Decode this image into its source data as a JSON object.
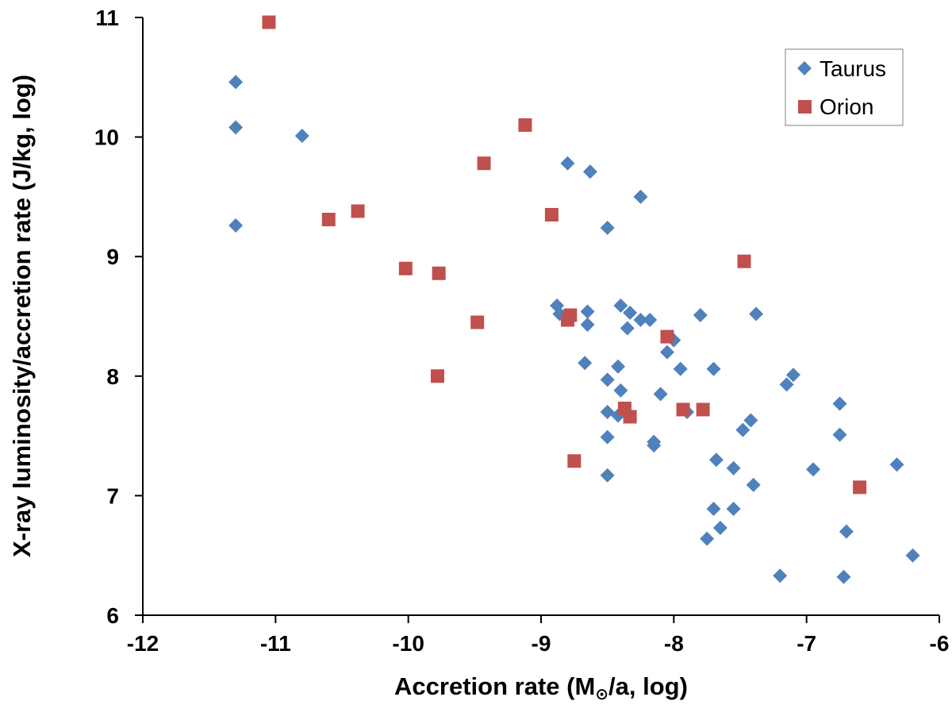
{
  "chart_data": {
    "type": "scatter",
    "title": "",
    "xlabel_main": "Accretion rate (M",
    "xlabel_unit": "/a, log)",
    "xlabel_symbol": "⊙",
    "ylabel": "X-ray luminosity/accretion rate (J/kg, log)",
    "xlim": [
      -12,
      -6
    ],
    "ylim": [
      6,
      11
    ],
    "xticks": [
      -12,
      -11,
      -10,
      -9,
      -8,
      -7,
      -6
    ],
    "yticks": [
      6,
      7,
      8,
      9,
      10,
      11
    ],
    "grid": false,
    "legend_position": "top-right",
    "series": [
      {
        "name": "Taurus",
        "marker": "diamond",
        "color": "#4F81BD",
        "points": [
          [
            -11.3,
            10.46
          ],
          [
            -11.3,
            10.08
          ],
          [
            -11.3,
            9.26
          ],
          [
            -10.8,
            10.01
          ],
          [
            -8.8,
            9.78
          ],
          [
            -8.63,
            9.71
          ],
          [
            -8.25,
            9.5
          ],
          [
            -8.5,
            9.24
          ],
          [
            -8.88,
            8.59
          ],
          [
            -8.86,
            8.52
          ],
          [
            -8.65,
            8.54
          ],
          [
            -8.4,
            8.59
          ],
          [
            -8.33,
            8.53
          ],
          [
            -8.25,
            8.47
          ],
          [
            -8.18,
            8.47
          ],
          [
            -7.8,
            8.51
          ],
          [
            -7.38,
            8.52
          ],
          [
            -8.65,
            8.43
          ],
          [
            -8.35,
            8.4
          ],
          [
            -8.0,
            8.3
          ],
          [
            -8.05,
            8.2
          ],
          [
            -8.67,
            8.11
          ],
          [
            -8.42,
            8.08
          ],
          [
            -7.95,
            8.06
          ],
          [
            -7.7,
            8.06
          ],
          [
            -7.1,
            8.01
          ],
          [
            -8.5,
            7.97
          ],
          [
            -7.15,
            7.93
          ],
          [
            -8.4,
            7.88
          ],
          [
            -8.1,
            7.85
          ],
          [
            -6.75,
            7.77
          ],
          [
            -8.5,
            7.7
          ],
          [
            -8.42,
            7.67
          ],
          [
            -7.9,
            7.7
          ],
          [
            -7.42,
            7.63
          ],
          [
            -7.48,
            7.55
          ],
          [
            -6.75,
            7.51
          ],
          [
            -8.5,
            7.49
          ],
          [
            -8.15,
            7.45
          ],
          [
            -8.15,
            7.42
          ],
          [
            -7.68,
            7.3
          ],
          [
            -7.55,
            7.23
          ],
          [
            -6.95,
            7.22
          ],
          [
            -6.32,
            7.26
          ],
          [
            -8.5,
            7.17
          ],
          [
            -7.4,
            7.09
          ],
          [
            -7.7,
            6.89
          ],
          [
            -7.55,
            6.89
          ],
          [
            -7.65,
            6.73
          ],
          [
            -6.7,
            6.7
          ],
          [
            -7.75,
            6.64
          ],
          [
            -7.2,
            6.33
          ],
          [
            -6.72,
            6.32
          ],
          [
            -6.2,
            6.5
          ]
        ]
      },
      {
        "name": "Orion",
        "marker": "square",
        "color": "#C0504D",
        "points": [
          [
            -11.05,
            10.96
          ],
          [
            -9.12,
            10.1
          ],
          [
            -9.43,
            9.78
          ],
          [
            -10.6,
            9.31
          ],
          [
            -10.38,
            9.38
          ],
          [
            -8.92,
            9.35
          ],
          [
            -7.47,
            8.96
          ],
          [
            -10.02,
            8.9
          ],
          [
            -9.77,
            8.86
          ],
          [
            -8.78,
            8.51
          ],
          [
            -8.8,
            8.47
          ],
          [
            -9.48,
            8.45
          ],
          [
            -8.05,
            8.33
          ],
          [
            -9.78,
            8.0
          ],
          [
            -8.37,
            7.73
          ],
          [
            -7.93,
            7.72
          ],
          [
            -7.78,
            7.72
          ],
          [
            -8.33,
            7.66
          ],
          [
            -8.75,
            7.29
          ],
          [
            -6.6,
            7.07
          ]
        ]
      }
    ]
  }
}
